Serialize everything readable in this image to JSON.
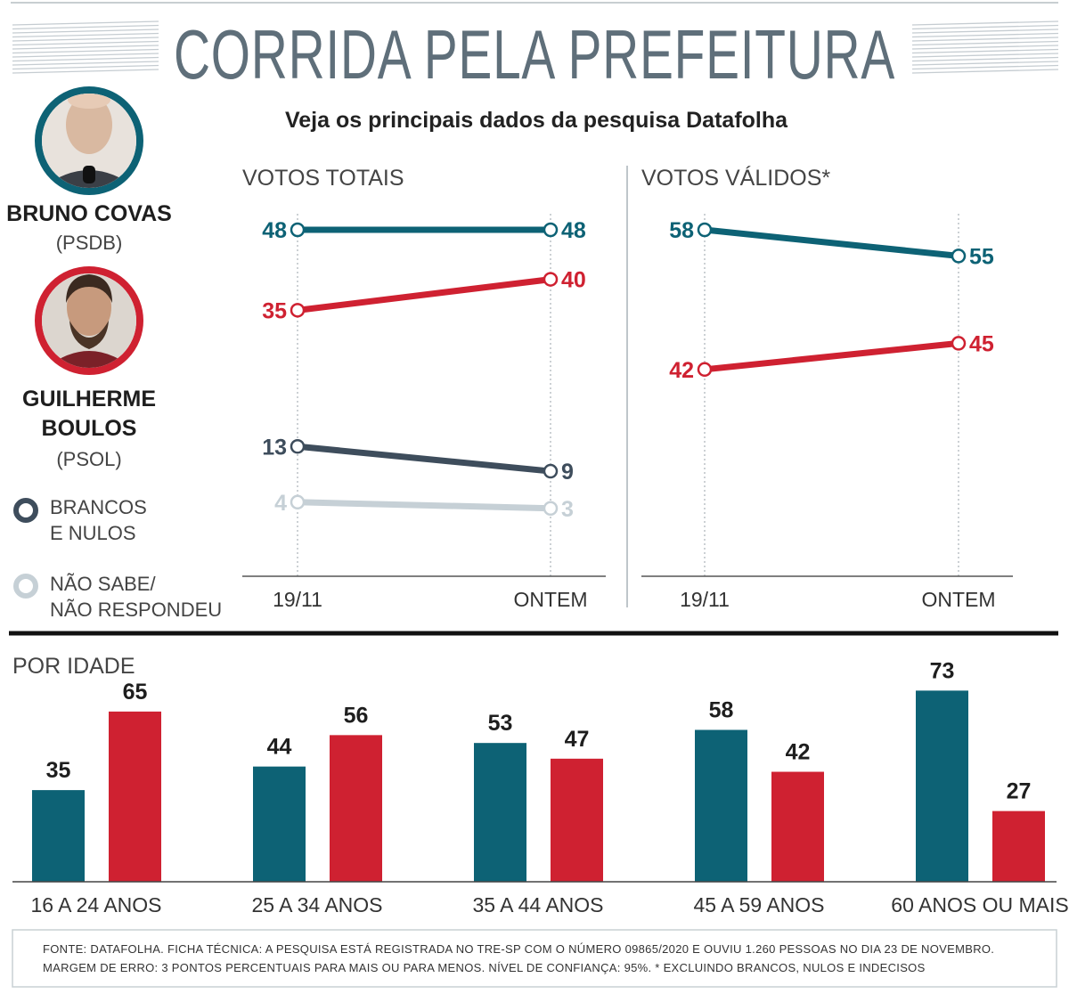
{
  "header": {
    "title": "CORRIDA PELA PREFEITURA",
    "subtitle": "Veja os principais dados da pesquisa Datafolha"
  },
  "colors": {
    "covas": "#0d6275",
    "boulos": "#cf2131",
    "brancos": "#3e4d5c",
    "nao_sabe": "#c6d0d6"
  },
  "candidates": [
    {
      "name_lines": [
        "BRUNO COVAS"
      ],
      "party": "(PSDB)",
      "color": "#0d6275",
      "icon": "bruno-covas-portrait"
    },
    {
      "name_lines": [
        "GUILHERME",
        "BOULOS"
      ],
      "party": "(PSOL)",
      "color": "#cf2131",
      "icon": "guilherme-boulos-portrait"
    }
  ],
  "legend": [
    {
      "lines": [
        "BRANCOS",
        "E NULOS"
      ],
      "color": "#3e4d5c",
      "icon": "circle-icon"
    },
    {
      "lines": [
        "NÃO SABE/",
        "NÃO RESPONDEU"
      ],
      "color": "#c6d0d6",
      "icon": "circle-icon"
    }
  ],
  "chart_data": [
    {
      "type": "line",
      "title": "VOTOS TOTAIS",
      "x": [
        "19/11",
        "ONTEM"
      ],
      "ylim": [
        0,
        55
      ],
      "series": [
        {
          "name": "Bruno Covas",
          "values": [
            48,
            48
          ],
          "color": "#0d6275"
        },
        {
          "name": "Guilherme Boulos",
          "values": [
            35,
            40
          ],
          "color": "#cf2131"
        },
        {
          "name": "Brancos e nulos",
          "values": [
            13,
            9
          ],
          "color": "#3e4d5c"
        },
        {
          "name": "Não sabe/Não respondeu",
          "values": [
            4,
            3
          ],
          "color": "#c6d0d6"
        }
      ]
    },
    {
      "type": "line",
      "title": "VOTOS VÁLIDOS*",
      "x": [
        "19/11",
        "ONTEM"
      ],
      "ylim": [
        0,
        65
      ],
      "series": [
        {
          "name": "Bruno Covas",
          "values": [
            58,
            55
          ],
          "color": "#0d6275"
        },
        {
          "name": "Guilherme Boulos",
          "values": [
            42,
            45
          ],
          "color": "#cf2131"
        }
      ]
    },
    {
      "type": "bar",
      "title": "POR IDADE",
      "categories": [
        "16 A 24 ANOS",
        "25 A 34 ANOS",
        "35 A 44 ANOS",
        "45 A 59 ANOS",
        "60 ANOS OU MAIS"
      ],
      "ylim": [
        0,
        80
      ],
      "series": [
        {
          "name": "Bruno Covas",
          "values": [
            35,
            44,
            53,
            58,
            73
          ],
          "color": "#0d6275"
        },
        {
          "name": "Guilherme Boulos",
          "values": [
            65,
            56,
            47,
            42,
            27
          ],
          "color": "#cf2131"
        }
      ]
    }
  ],
  "footer": {
    "line1": "FONTE: DATAFOLHA. FICHA TÉCNICA: A PESQUISA ESTÁ REGISTRADA NO TRE-SP COM O NÚMERO 09865/2020 E OUVIU 1.260 PESSOAS NO DIA 23 DE NOVEMBRO.",
    "line2": "MARGEM DE ERRO: 3 PONTOS PERCENTUAIS PARA MAIS OU PARA MENOS. NÍVEL DE CONFIANÇA: 95%.   * EXCLUINDO BRANCOS, NULOS E INDECISOS"
  }
}
